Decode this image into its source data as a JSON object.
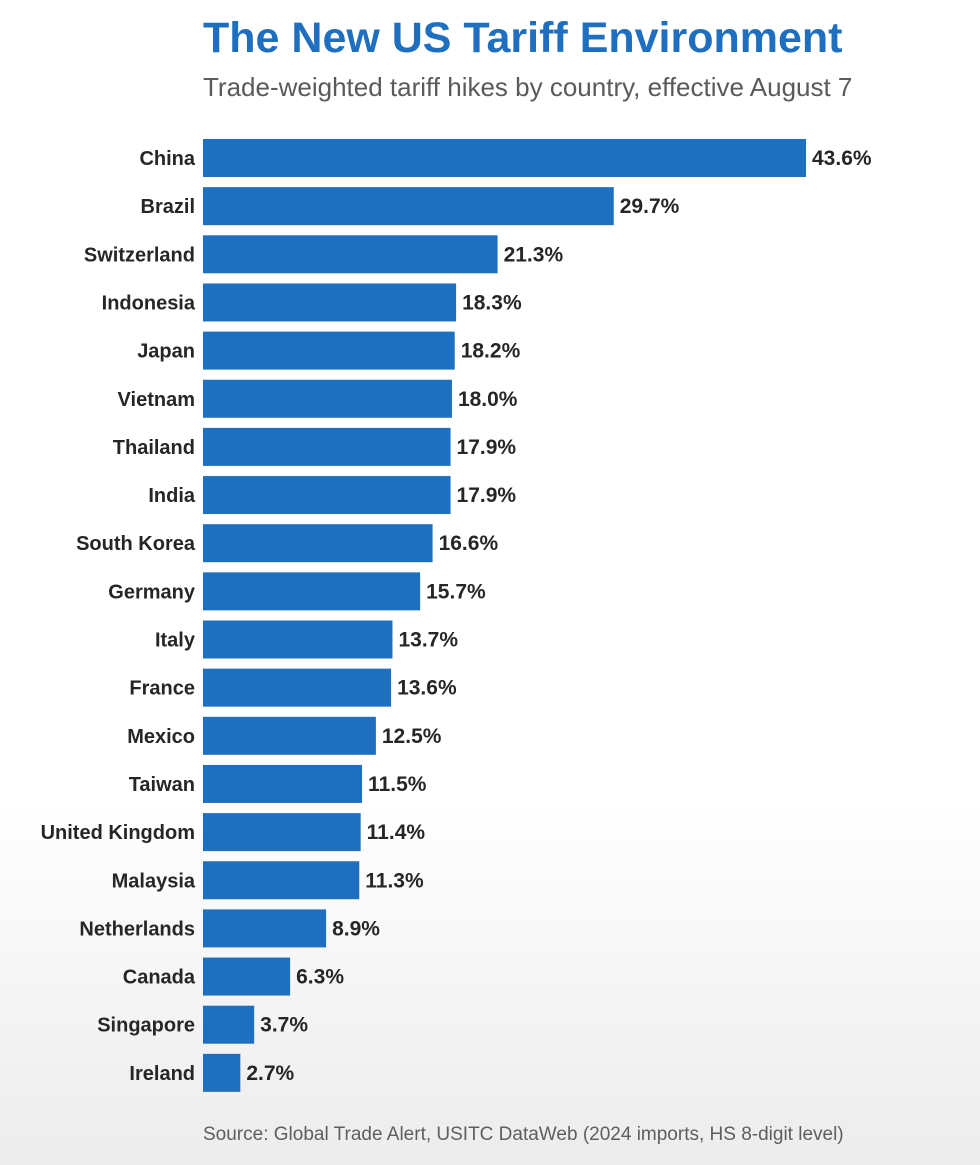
{
  "chart_data": {
    "type": "bar",
    "orientation": "horizontal",
    "title": "The New US Tariff Environment",
    "subtitle": "Trade-weighted tariff hikes by country, effective August 7",
    "source": "Source: Global Trade Alert, USITC DataWeb (2024 imports, HS 8-digit level)",
    "categories": [
      "China",
      "Brazil",
      "Switzerland",
      "Indonesia",
      "Japan",
      "Vietnam",
      "Thailand",
      "India",
      "South Korea",
      "Germany",
      "Italy",
      "France",
      "Mexico",
      "Taiwan",
      "United Kingdom",
      "Malaysia",
      "Netherlands",
      "Canada",
      "Singapore",
      "Ireland"
    ],
    "values": [
      43.6,
      29.7,
      21.3,
      18.3,
      18.2,
      18.0,
      17.9,
      17.9,
      16.6,
      15.7,
      13.7,
      13.6,
      12.5,
      11.5,
      11.4,
      11.3,
      8.9,
      6.3,
      3.7,
      2.7
    ],
    "value_labels": [
      "43.6%",
      "29.7%",
      "21.3%",
      "18.3%",
      "18.2%",
      "18.0%",
      "17.9%",
      "17.9%",
      "16.6%",
      "15.7%",
      "13.7%",
      "13.6%",
      "12.5%",
      "11.5%",
      "11.4%",
      "11.3%",
      "8.9%",
      "6.3%",
      "3.7%",
      "2.7%"
    ],
    "xlim": [
      0,
      43.6
    ],
    "grid": false,
    "legend": "none",
    "bar_color": "#1f6fc0",
    "title_color": "#1f6fc0"
  }
}
